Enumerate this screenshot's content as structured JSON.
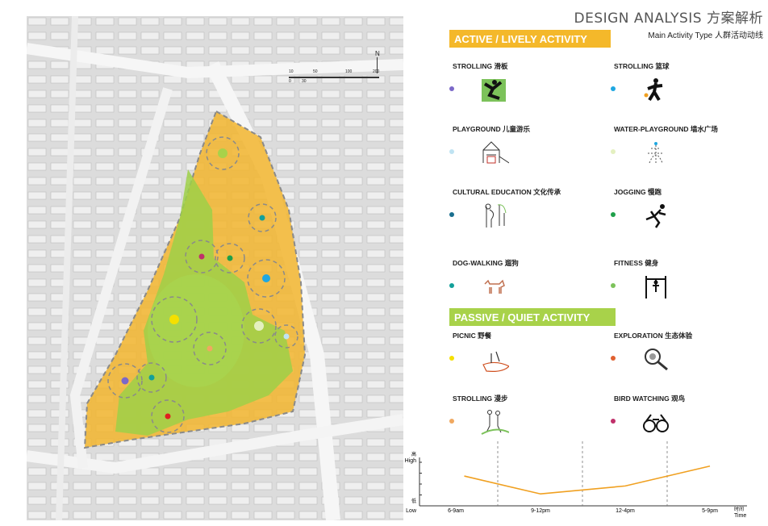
{
  "header": {
    "title": "DESIGN ANALYSIS 方案解析",
    "subtitle": "Main Activity Type 人群活动动线"
  },
  "sections": {
    "active": "ACTIVE / LIVELY ACTIVITY",
    "passive": "PASSIVE / QUIET ACTIVITY"
  },
  "map": {
    "north": "N",
    "scale": [
      "10",
      "50",
      "100",
      "200"
    ],
    "scale_sub": [
      "0",
      "30"
    ]
  },
  "activities": [
    {
      "label": "STROLLING 滑板",
      "color": "#7b68c8",
      "icon": "skateboard-icon"
    },
    {
      "label": "STROLLING 篮球",
      "color": "#1ea7e1",
      "icon": "basketball-icon"
    },
    {
      "label": "PLAYGROUND 儿童游乐",
      "color": "#bfe3f2",
      "icon": "playground-icon"
    },
    {
      "label": "WATER-PLAYGROUND 墙水广场",
      "color": "#e4f0c0",
      "icon": "fountain-icon"
    },
    {
      "label": "CULTURAL EDUCATION 文化传承",
      "color": "#1a6f8f",
      "icon": "family-icon"
    },
    {
      "label": "JOGGING 慢跑",
      "color": "#1fa04a",
      "icon": "runner-icon"
    },
    {
      "label": "DOG-WALKING 遛狗",
      "color": "#13a09a",
      "icon": "dog-icon"
    },
    {
      "label": "FITNESS 健身",
      "color": "#7cc25a",
      "icon": "fitness-icon"
    },
    {
      "label": "PICNIC 野餐",
      "color": "#f5e000",
      "icon": "picnic-icon"
    },
    {
      "label": "EXPLORATION 生态体验",
      "color": "#e06030",
      "icon": "magnifier-icon"
    },
    {
      "label": "STROLLING 漫步",
      "color": "#f0a860",
      "icon": "walking-icon"
    },
    {
      "label": "BIRD WATCHING 观鸟",
      "color": "#c0306a",
      "icon": "binoculars-icon"
    }
  ],
  "chart_data": {
    "type": "line",
    "categories": [
      "6-9am",
      "9-12pm",
      "12-4pm",
      "5-9pm"
    ],
    "y_top": [
      "高",
      "High"
    ],
    "y_bottom": [
      "低",
      "Low"
    ],
    "x_end": [
      "时间",
      "Time"
    ],
    "series": [
      {
        "color": "#f0a020",
        "x": [
          0.1,
          1.0,
          2.0,
          3.0
        ],
        "values": [
          0.75,
          0.3,
          0.5,
          1.0
        ]
      }
    ],
    "ylim": [
      0,
      1.3
    ]
  }
}
